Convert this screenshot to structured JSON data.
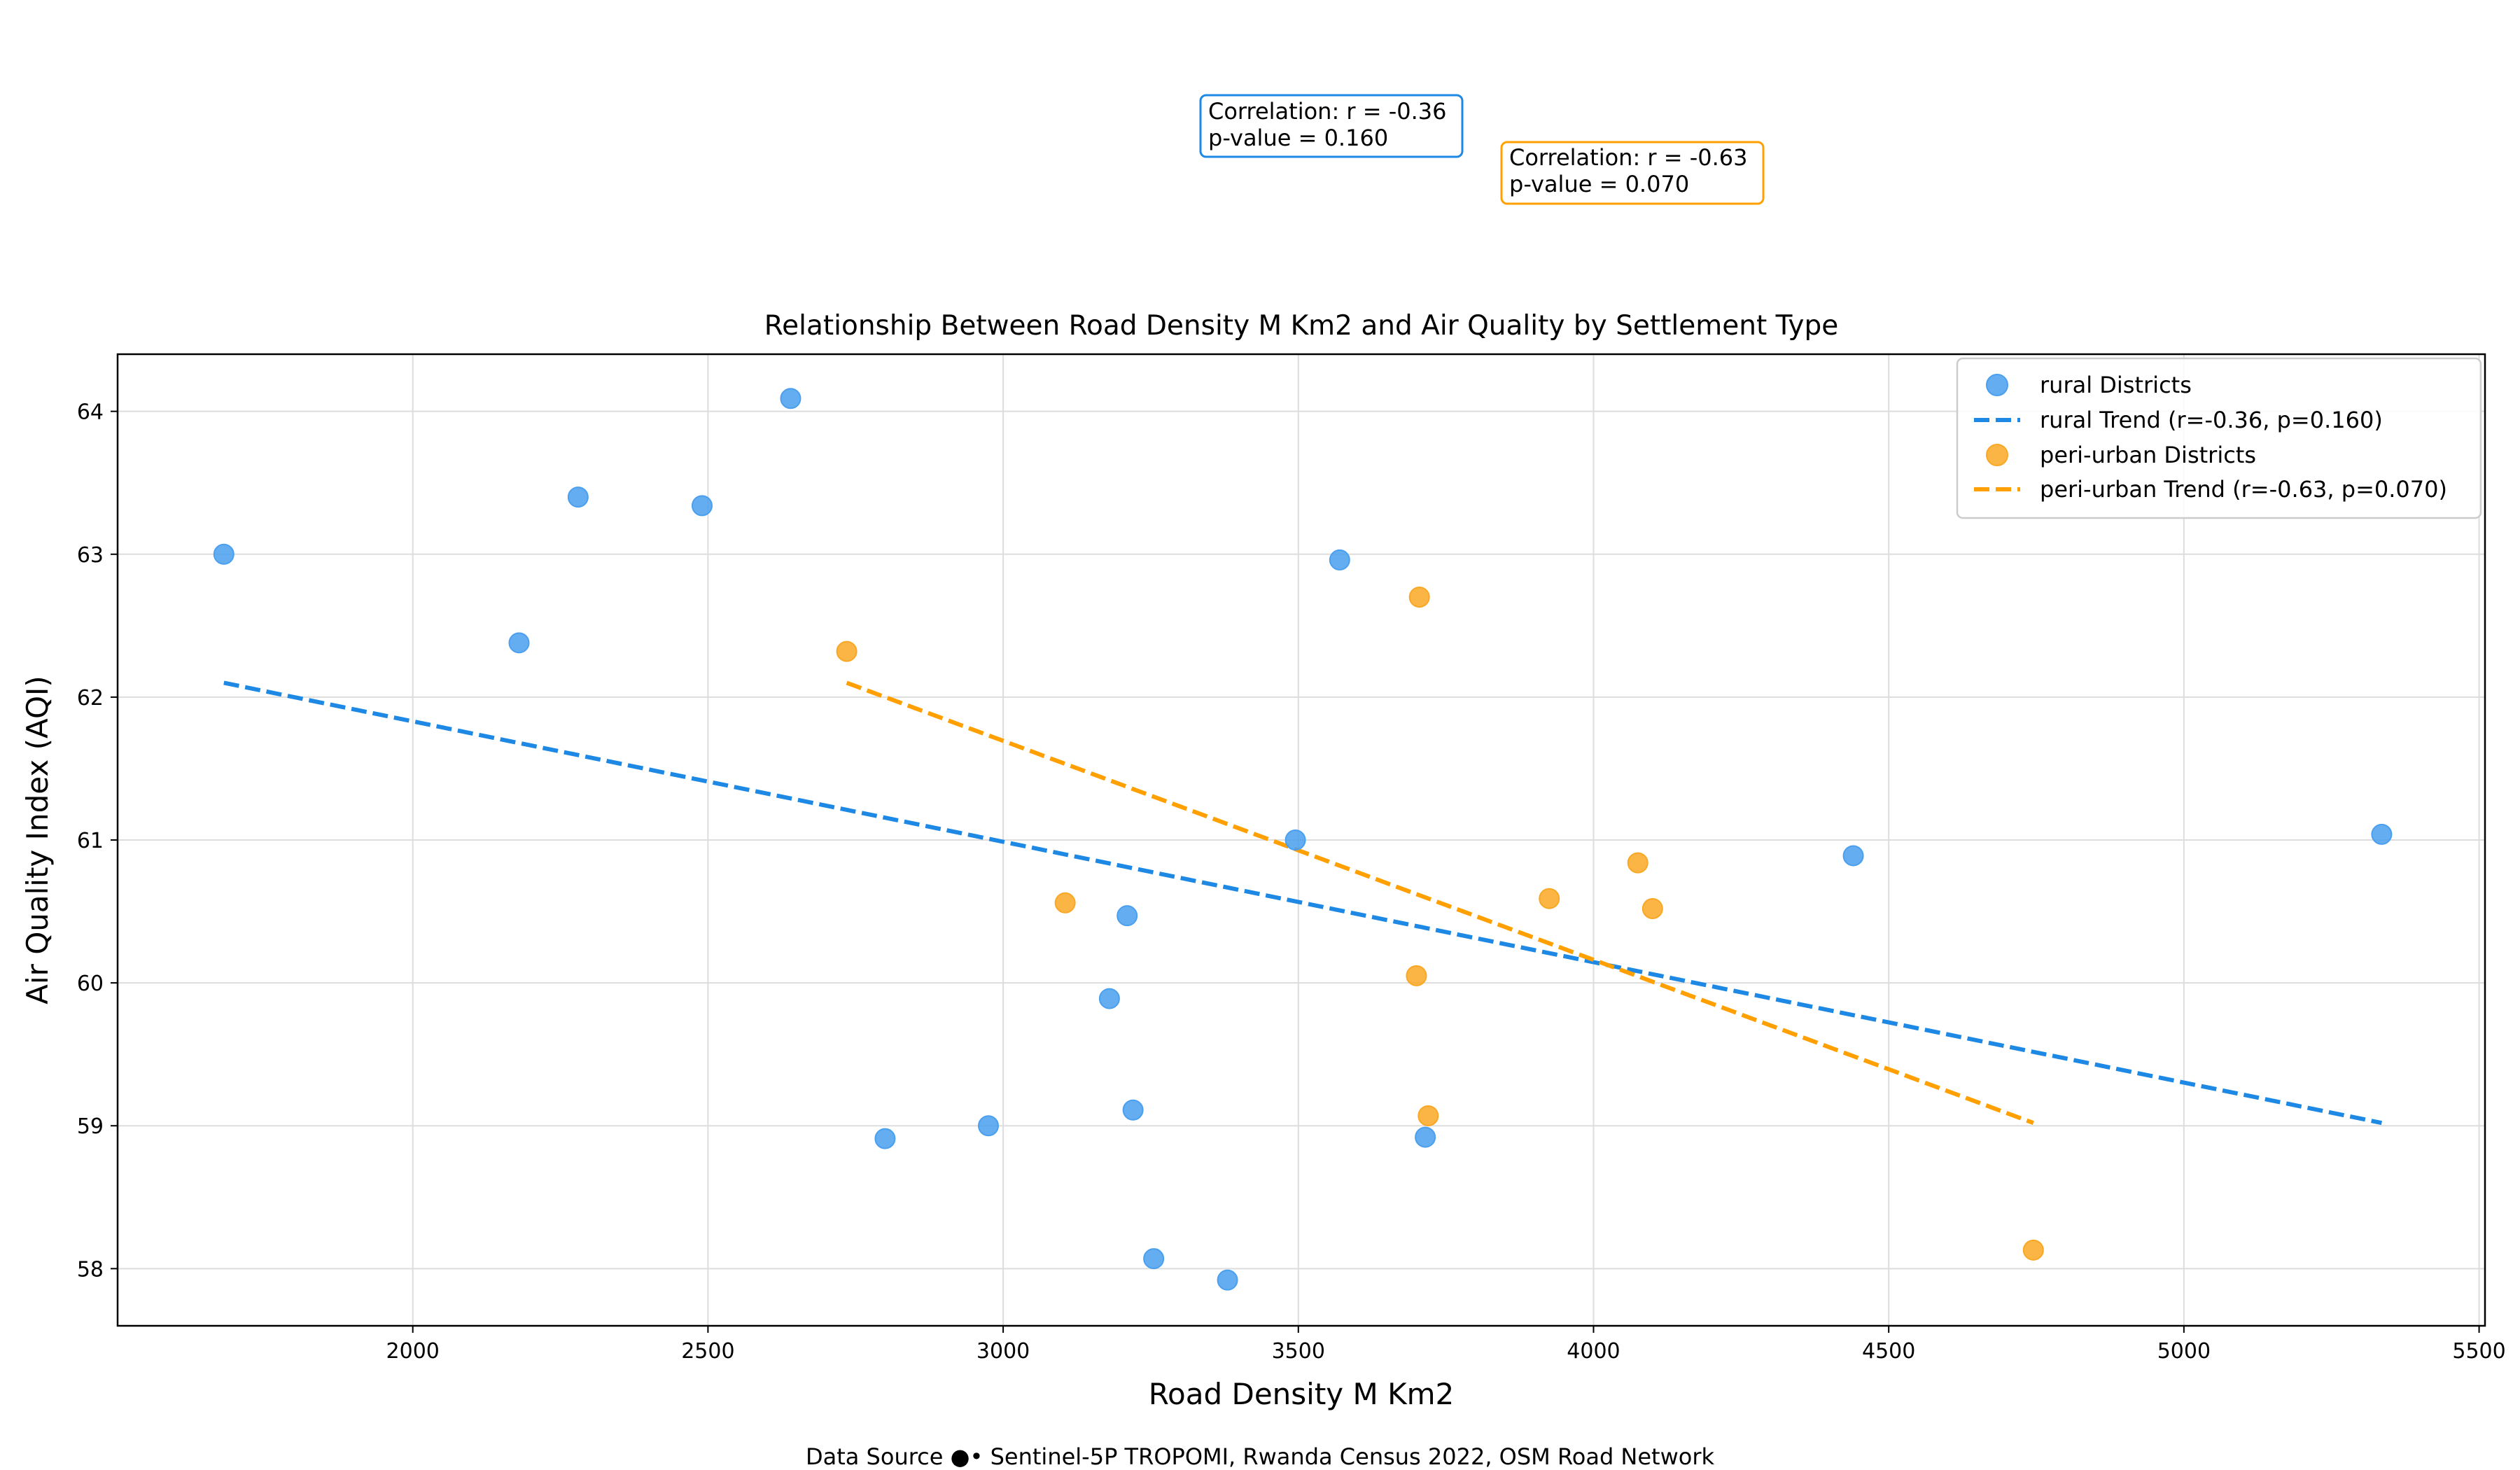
{
  "chart_data": {
    "type": "scatter",
    "title": "Relationship Between Road Density M Km2 and Air Quality by Settlement Type",
    "xlabel": "Road Density M Km2",
    "ylabel": "Air Quality Index (AQI)",
    "xlim": [
      1500,
      5510
    ],
    "ylim": [
      57.6,
      64.4
    ],
    "xticks": [
      2000,
      2500,
      3000,
      3500,
      4000,
      4500,
      5000,
      5500
    ],
    "yticks": [
      58,
      59,
      60,
      61,
      62,
      63,
      64
    ],
    "grid": true,
    "legend_position": "top-right",
    "series": [
      {
        "name": "rural Districts",
        "color": "#4a9fef",
        "points": [
          [
            1680,
            63.0
          ],
          [
            2180,
            62.38
          ],
          [
            2280,
            63.4
          ],
          [
            2490,
            63.34
          ],
          [
            2640,
            64.09
          ],
          [
            2800,
            58.91
          ],
          [
            2975,
            59.0
          ],
          [
            3180,
            59.89
          ],
          [
            3210,
            60.47
          ],
          [
            3220,
            59.11
          ],
          [
            3255,
            58.07
          ],
          [
            3380,
            57.92
          ],
          [
            3495,
            61.0
          ],
          [
            3570,
            62.96
          ],
          [
            3715,
            58.92
          ],
          [
            4440,
            60.89
          ],
          [
            5335,
            61.04
          ]
        ]
      },
      {
        "name": "peri-urban Districts",
        "color": "#f9a825",
        "points": [
          [
            2735,
            62.32
          ],
          [
            3105,
            60.56
          ],
          [
            3700,
            60.05
          ],
          [
            3705,
            62.7
          ],
          [
            3720,
            59.07
          ],
          [
            3925,
            60.59
          ],
          [
            4075,
            60.84
          ],
          [
            4100,
            60.52
          ],
          [
            4745,
            58.13
          ]
        ]
      }
    ],
    "trends": [
      {
        "name": "rural Trend (r=-0.36, p=0.160)",
        "color": "#1e88e5",
        "start": [
          1680,
          62.1
        ],
        "end": [
          5335,
          59.02
        ]
      },
      {
        "name": "peri-urban Trend (r=-0.63, p=0.070)",
        "color": "#ffa000",
        "start": [
          2735,
          62.1
        ],
        "end": [
          4745,
          59.02
        ]
      }
    ],
    "annotations": [
      {
        "lines": [
          "Correlation: r = -0.36",
          "p-value = 0.160"
        ],
        "border": "#1e88e5"
      },
      {
        "lines": [
          "Correlation: r = -0.63",
          "p-value = 0.070"
        ],
        "border": "#ffa000"
      }
    ],
    "footer": "Data Source ●• Sentinel-5P TROPOMI, Rwanda Census 2022, OSM Road Network"
  }
}
